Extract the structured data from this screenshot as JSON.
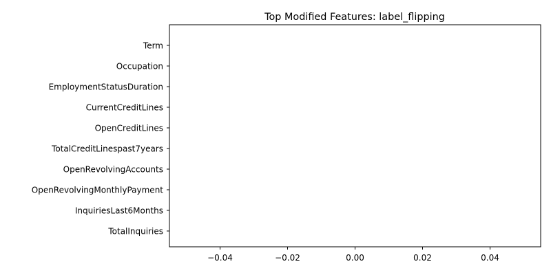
{
  "chart_data": {
    "type": "bar",
    "orientation": "horizontal",
    "title": "Top Modified Features: label_flipping",
    "categories": [
      "Term",
      "Occupation",
      "EmploymentStatusDuration",
      "CurrentCreditLines",
      "OpenCreditLines",
      "TotalCreditLinespast7years",
      "OpenRevolvingAccounts",
      "OpenRevolvingMonthlyPayment",
      "InquiriesLast6Months",
      "TotalInquiries"
    ],
    "values": [
      0,
      0,
      0,
      0,
      0,
      0,
      0,
      0,
      0,
      0
    ],
    "xlim": [
      -0.055,
      0.055
    ],
    "x_ticks": [
      -0.04,
      -0.02,
      0.0,
      0.02,
      0.04
    ],
    "x_tick_labels": [
      "−0.04",
      "−0.02",
      "0.00",
      "0.02",
      "0.04"
    ],
    "xlabel": "",
    "ylabel": "",
    "grid": false,
    "bar_color": "#1f77b4"
  }
}
